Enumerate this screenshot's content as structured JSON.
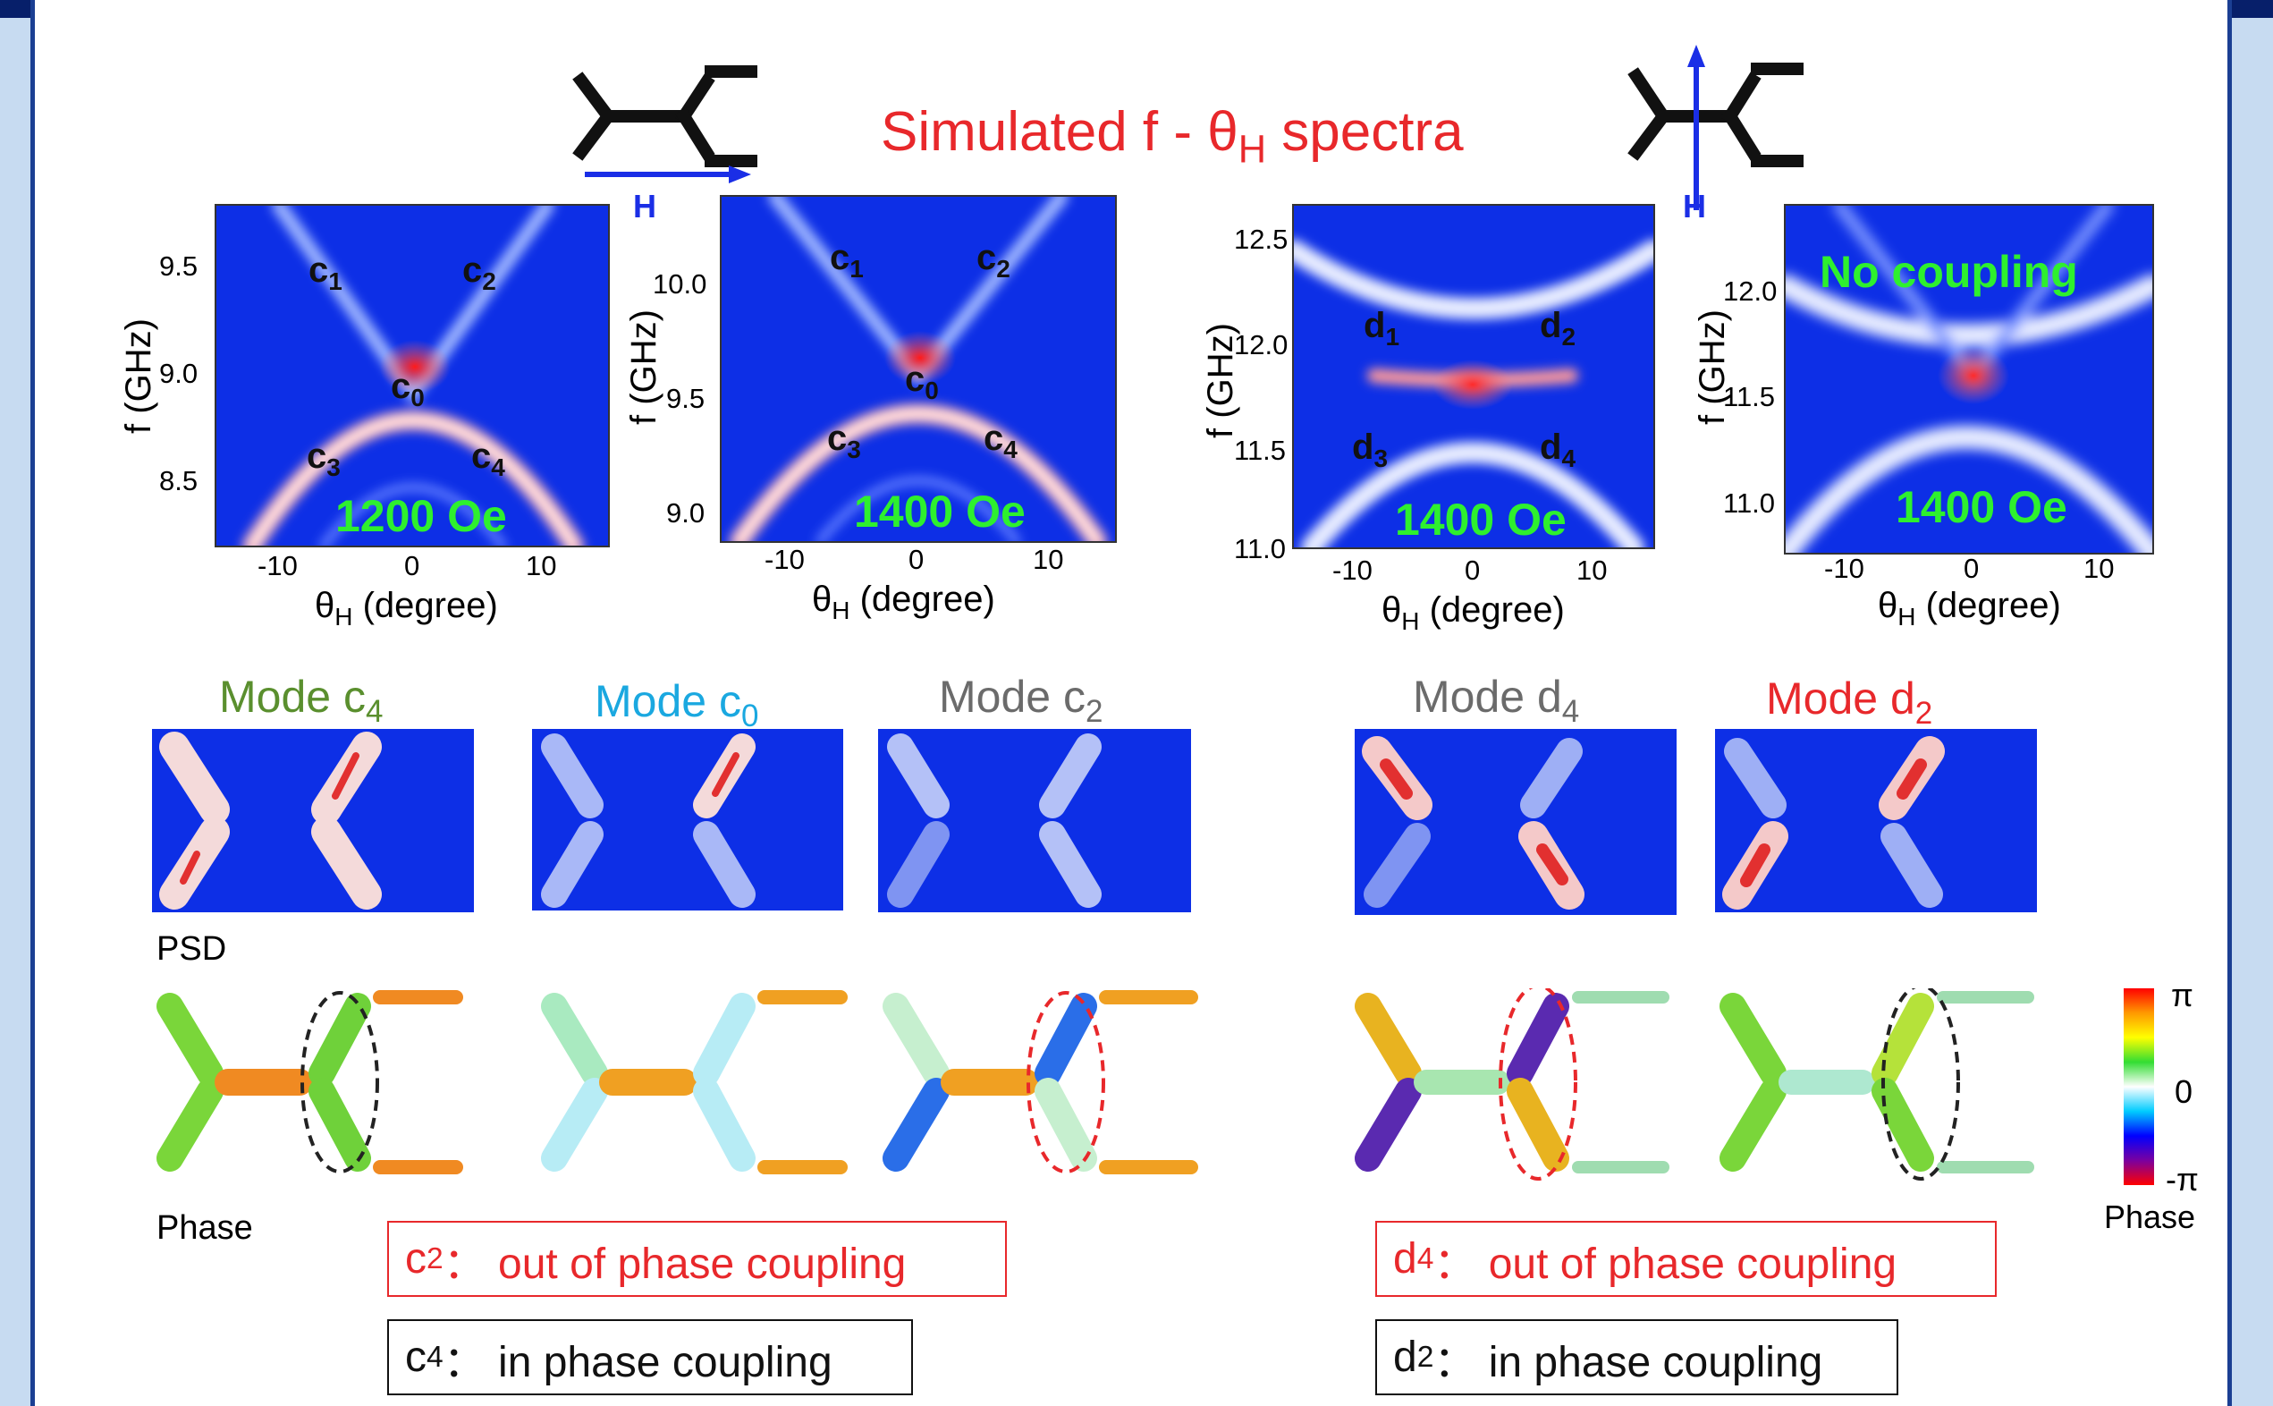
{
  "title": "Simulated f - θ",
  "title_sub": "H",
  "title_tail": " spectra",
  "h_label": "H",
  "axis": {
    "ylabel": "f (GHz)",
    "xlabel_main": "θ",
    "xlabel_sub": "H",
    "xlabel_tail": " (degree)",
    "xticks": [
      "-10",
      "0",
      "10"
    ]
  },
  "panels": [
    {
      "yticks": [
        "9.5",
        "9.0",
        "8.5"
      ],
      "field": "1200 Oe",
      "modes": [
        {
          "t": "c",
          "s": "1"
        },
        {
          "t": "c",
          "s": "2"
        },
        {
          "t": "c",
          "s": "0"
        },
        {
          "t": "c",
          "s": "3"
        },
        {
          "t": "c",
          "s": "4"
        }
      ]
    },
    {
      "yticks": [
        "10.0",
        "9.5",
        "9.0"
      ],
      "field": "1400 Oe",
      "modes": [
        {
          "t": "c",
          "s": "1"
        },
        {
          "t": "c",
          "s": "2"
        },
        {
          "t": "c",
          "s": "0"
        },
        {
          "t": "c",
          "s": "3"
        },
        {
          "t": "c",
          "s": "4"
        }
      ]
    },
    {
      "yticks": [
        "12.5",
        "12.0",
        "11.5",
        "11.0"
      ],
      "field": "1400 Oe",
      "modes": [
        {
          "t": "d",
          "s": "1"
        },
        {
          "t": "d",
          "s": "2"
        },
        {
          "t": "d",
          "s": "3"
        },
        {
          "t": "d",
          "s": "4"
        }
      ]
    },
    {
      "yticks": [
        "12.0",
        "11.5",
        "11.0"
      ],
      "field": "1400 Oe",
      "note": "No coupling"
    }
  ],
  "mode_titles": [
    {
      "t": "Mode c",
      "s": "4",
      "color": "#5a8f2e"
    },
    {
      "t": "Mode c",
      "s": "0",
      "color": "#1aa8e0"
    },
    {
      "t": "Mode c",
      "s": "2",
      "color": "#6b6b6b"
    },
    {
      "t": "Mode d",
      "s": "4",
      "color": "#6b6b6b"
    },
    {
      "t": "Mode d",
      "s": "2",
      "color": "#e8282b"
    }
  ],
  "row_labels": {
    "psd": "PSD",
    "phase": "Phase"
  },
  "colorbar": {
    "top": "π",
    "mid": "0",
    "bottom": "-π",
    "label": "Phase"
  },
  "boxes": [
    {
      "t": "c",
      "s": "2",
      "rest": "： out of phase coupling",
      "color": "#e8282b"
    },
    {
      "t": "c",
      "s": "4",
      "rest": " ： in phase coupling",
      "color": "#111111"
    },
    {
      "t": "d",
      "s": "4",
      "rest": "： out of phase coupling",
      "color": "#e8282b"
    },
    {
      "t": "d",
      "s": "2",
      "rest": " ： in phase coupling",
      "color": "#111111"
    }
  ],
  "colors": {
    "map_blue": "#0d2fe6",
    "accent_red": "#e8282b",
    "field_green": "#2ef02e",
    "arrow_blue": "#1a2ee6"
  }
}
